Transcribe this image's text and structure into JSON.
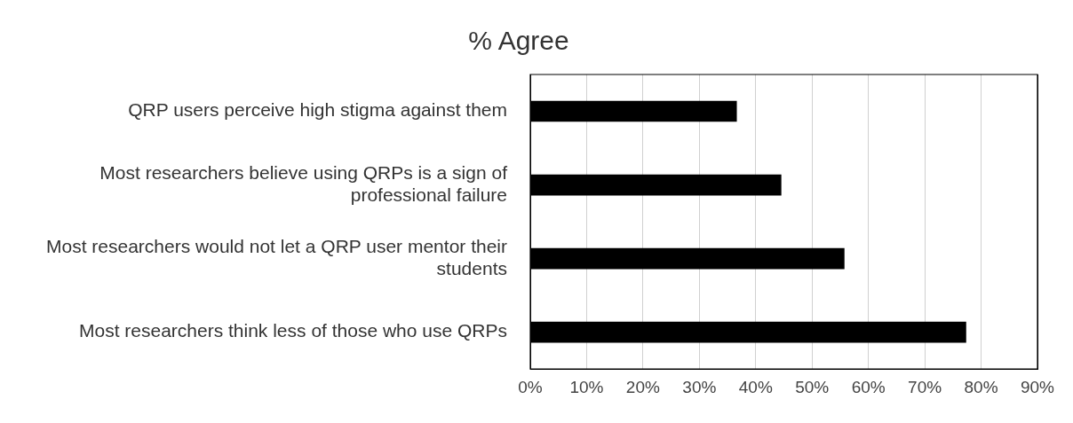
{
  "chart_data": {
    "type": "bar",
    "orientation": "horizontal",
    "title": "% Agree",
    "categories": [
      "QRP users perceive high stigma against them",
      "Most researchers believe using QRPs is a sign of professional failure",
      "Most researchers would not let a QRP user mentor their students",
      "Most researchers think less of those who use QRPs"
    ],
    "values": [
      36.6,
      44.5,
      55.7,
      77.3
    ],
    "color": "#000000",
    "xlim": [
      0,
      90
    ],
    "xticks": [
      {
        "value": 0,
        "label": "0%"
      },
      {
        "value": 10,
        "label": "10%"
      },
      {
        "value": 20,
        "label": "20%"
      },
      {
        "value": 30,
        "label": "30%"
      },
      {
        "value": 40,
        "label": "40%"
      },
      {
        "value": 50,
        "label": "50%"
      },
      {
        "value": 60,
        "label": "60%"
      },
      {
        "value": 70,
        "label": "70%"
      },
      {
        "value": 80,
        "label": "80%"
      },
      {
        "value": 90,
        "label": "90%"
      }
    ],
    "grid": "x",
    "legend": false
  }
}
